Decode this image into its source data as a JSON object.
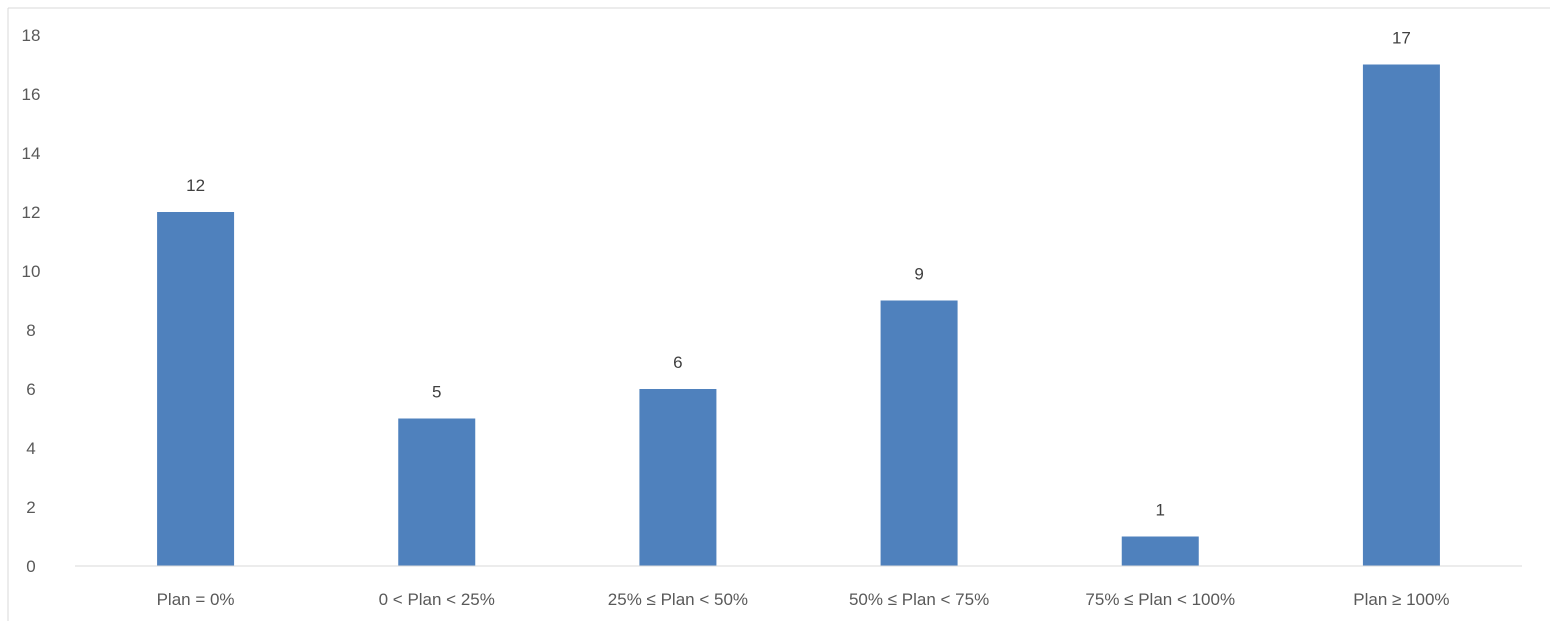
{
  "chart_data": {
    "type": "bar",
    "categories": [
      "Plan = 0%",
      "0 < Plan < 25%",
      "25% ≤ Plan < 50%",
      "50% ≤ Plan < 75%",
      "75% ≤ Plan < 100%",
      "Plan ≥ 100%"
    ],
    "values": [
      12,
      5,
      6,
      9,
      1,
      17
    ],
    "title": "",
    "xlabel": "",
    "ylabel": "",
    "ylim": [
      0,
      18
    ],
    "yticks": [
      0,
      2,
      4,
      6,
      8,
      10,
      12,
      14,
      16,
      18
    ],
    "grid": false,
    "legend": "none",
    "data_labels": true,
    "bar_color": "#4f81bd",
    "axis_color": "#d9d9d9"
  }
}
